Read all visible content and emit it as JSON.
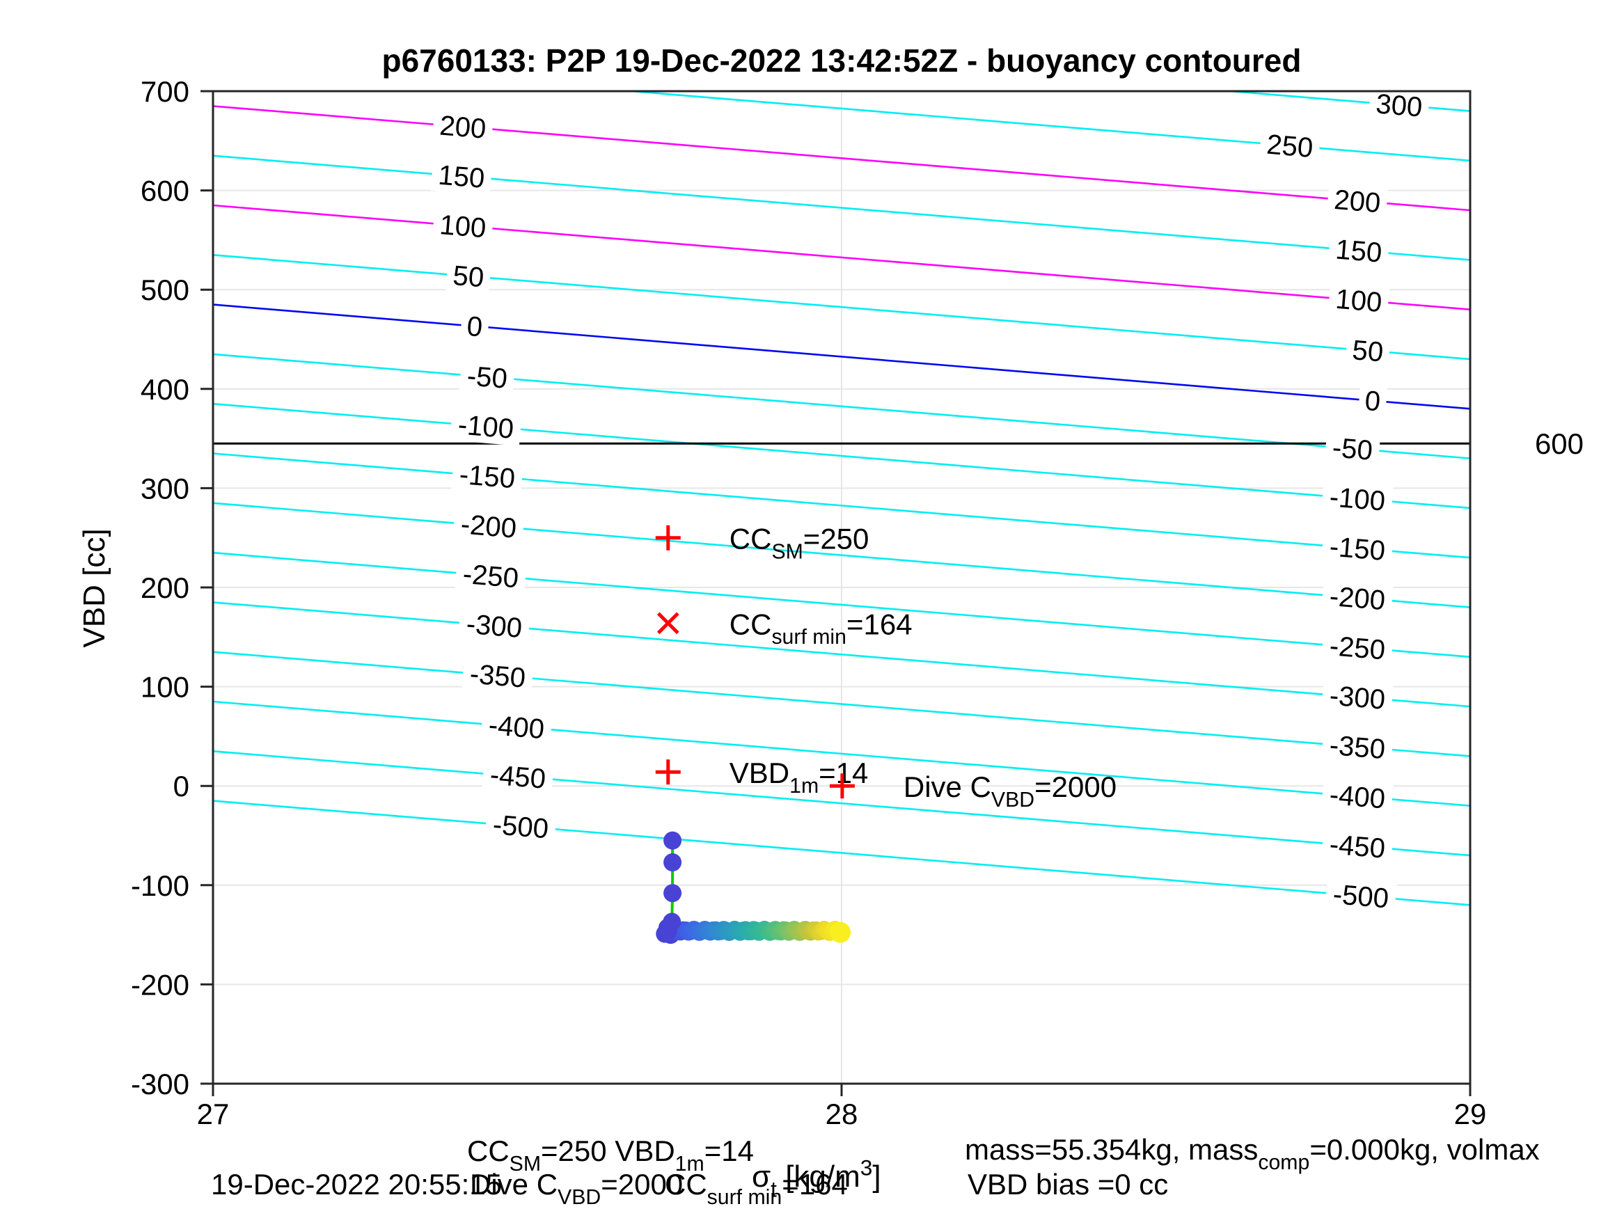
{
  "title": "p6760133: P2P 19-Dec-2022 13:42:52Z - buoyancy contoured",
  "axes": {
    "ylabel": "VBD [cc]",
    "xlabel_segments": [
      {
        "t": "σ"
      },
      {
        "t": "t",
        "sub": true
      },
      {
        "t": " [kg/m"
      },
      {
        "t": "3",
        "sup": true
      },
      {
        "t": "]"
      }
    ],
    "xlim": [
      27,
      29
    ],
    "ylim": [
      -300,
      700
    ],
    "xticks": [
      27,
      28,
      29
    ],
    "yticks": [
      700,
      600,
      500,
      400,
      300,
      200,
      100,
      0,
      -100,
      -200,
      -300
    ],
    "grid_color": "#e6e6e6",
    "spine_color": "#262626"
  },
  "chart_data": {
    "type": "contour+scatter",
    "contour_interval": 50,
    "contour_colors": {
      "cyan": "#00eef2",
      "magenta": "#ff00ff",
      "blue": "#0008f0"
    },
    "contours": [
      {
        "value": 300,
        "color": "cyan",
        "vbd_left": 785,
        "vbd_right": 680,
        "label_x": [
          2010
        ]
      },
      {
        "value": 250,
        "color": "cyan",
        "vbd_left": 735,
        "vbd_right": 630,
        "label_x": [
          1853
        ]
      },
      {
        "value": 200,
        "color": "magenta",
        "vbd_left": 685,
        "vbd_right": 580,
        "label_x": [
          665,
          1950
        ]
      },
      {
        "value": 150,
        "color": "cyan",
        "vbd_left": 635,
        "vbd_right": 530,
        "label_x": [
          663,
          1952
        ]
      },
      {
        "value": 100,
        "color": "magenta",
        "vbd_left": 585,
        "vbd_right": 480,
        "label_x": [
          665,
          1952
        ]
      },
      {
        "value": 50,
        "color": "cyan",
        "vbd_left": 535,
        "vbd_right": 430,
        "label_x": [
          673,
          1965
        ]
      },
      {
        "value": 0,
        "color": "blue",
        "vbd_left": 485,
        "vbd_right": 380,
        "label_x": [
          682,
          1972
        ]
      },
      {
        "value": -50,
        "color": "cyan",
        "vbd_left": 435,
        "vbd_right": 330,
        "label_x": [
          700,
          1943
        ]
      },
      {
        "value": -100,
        "color": "cyan",
        "vbd_left": 385,
        "vbd_right": 280,
        "label_x": [
          698,
          1950
        ]
      },
      {
        "value": -150,
        "color": "cyan",
        "vbd_left": 335,
        "vbd_right": 230,
        "label_x": [
          700,
          1950
        ]
      },
      {
        "value": -200,
        "color": "cyan",
        "vbd_left": 285,
        "vbd_right": 180,
        "label_x": [
          702,
          1950
        ]
      },
      {
        "value": -250,
        "color": "cyan",
        "vbd_left": 235,
        "vbd_right": 130,
        "label_x": [
          705,
          1950
        ]
      },
      {
        "value": -300,
        "color": "cyan",
        "vbd_left": 185,
        "vbd_right": 80,
        "label_x": [
          710,
          1950
        ]
      },
      {
        "value": -350,
        "color": "cyan",
        "vbd_left": 135,
        "vbd_right": 30,
        "label_x": [
          715,
          1950
        ]
      },
      {
        "value": -400,
        "color": "cyan",
        "vbd_left": 85,
        "vbd_right": -20,
        "label_x": [
          742,
          1950
        ]
      },
      {
        "value": -450,
        "color": "cyan",
        "vbd_left": 35,
        "vbd_right": -70,
        "label_x": [
          744,
          1950
        ]
      },
      {
        "value": -500,
        "color": "cyan",
        "vbd_left": -15,
        "vbd_right": -120,
        "label_x": [
          748,
          1955
        ]
      }
    ],
    "black_line": {
      "vbd": 345,
      "label": "600"
    },
    "markers": [
      {
        "shape": "plus",
        "sigma": 27.724,
        "vbd": 250,
        "label_segments": [
          {
            "t": "CC"
          },
          {
            "t": "SM",
            "sub": true
          },
          {
            "t": "=250"
          }
        ]
      },
      {
        "shape": "cross",
        "sigma": 27.724,
        "vbd": 164,
        "label_segments": [
          {
            "t": "CC"
          },
          {
            "t": "surf min",
            "sub": true
          },
          {
            "t": "=164"
          }
        ]
      },
      {
        "shape": "plus",
        "sigma": 27.724,
        "vbd": 14,
        "label_segments": [
          {
            "t": "VBD"
          },
          {
            "t": "1m",
            "sub": true
          },
          {
            "t": "=14"
          }
        ]
      },
      {
        "shape": "plus",
        "sigma": 28.001,
        "vbd": 0,
        "label_segments": [
          {
            "t": "Dive C"
          },
          {
            "t": "VBD",
            "sub": true
          },
          {
            "t": "=2000"
          }
        ]
      }
    ],
    "marker_color": "#ff0000",
    "dive_track": {
      "descent_points": [
        {
          "sigma": 27.731,
          "vbd": -55
        },
        {
          "sigma": 27.731,
          "vbd": -77
        },
        {
          "sigma": 27.731,
          "vbd": -108
        },
        {
          "sigma": 27.73,
          "vbd": -137
        },
        {
          "sigma": 27.724,
          "vbd": -146
        }
      ],
      "extra_points": [
        {
          "sigma": 27.719,
          "vbd": -149
        },
        {
          "sigma": 27.723,
          "vbd": -143
        },
        {
          "sigma": 27.728,
          "vbd": -150
        }
      ],
      "surface_run": {
        "sigma_start": 27.722,
        "sigma_end": 27.998,
        "vbd": -146,
        "n_points": 65
      },
      "track_color": "#00cf00",
      "point_color": "#4843d4",
      "colormap": [
        "#4543d8",
        "#4156e2",
        "#3b6be6",
        "#3480d8",
        "#2e92c8",
        "#2aa3b8",
        "#2db1a5",
        "#3dbb8d",
        "#63c173",
        "#94c357",
        "#c4c43c",
        "#eeda28",
        "#f9ef20"
      ]
    }
  },
  "annotations": {
    "timestamp": "19-Dec-2022 20:55:15",
    "center_line1_segments": [
      {
        "t": "CC"
      },
      {
        "t": "SM",
        "sub": true
      },
      {
        "t": "=250    VBD"
      },
      {
        "t": "1m",
        "sub": true
      },
      {
        "t": "=14"
      }
    ],
    "center_line2_segments": [
      {
        "t": "Dive C"
      },
      {
        "t": "VBD",
        "sub": true
      },
      {
        "t": "=2000"
      }
    ],
    "surfmin_segments": [
      {
        "t": "CC"
      },
      {
        "t": "surf min",
        "sub": true
      },
      {
        "t": "=164"
      }
    ],
    "mass_segments": [
      {
        "t": "mass=55.354kg, mass"
      },
      {
        "t": "comp",
        "sub": true
      },
      {
        "t": "=0.000kg, volmax"
      }
    ],
    "vbd_bias": "VBD bias =0 cc"
  }
}
